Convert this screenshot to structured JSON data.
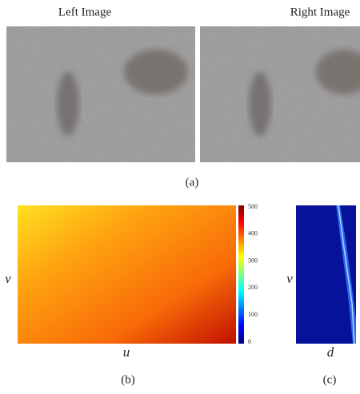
{
  "figure": {
    "panel_a": {
      "left_title": "Left Image",
      "right_title": "Right Image",
      "caption": "(a)"
    },
    "panel_b": {
      "y_label": "v",
      "x_label": "u",
      "caption": "(b)",
      "colorbar_ticks": [
        "500",
        "400",
        "300",
        "200",
        "100",
        "0"
      ]
    },
    "panel_c": {
      "y_label": "v",
      "x_label": "d",
      "caption": "(c)"
    }
  }
}
